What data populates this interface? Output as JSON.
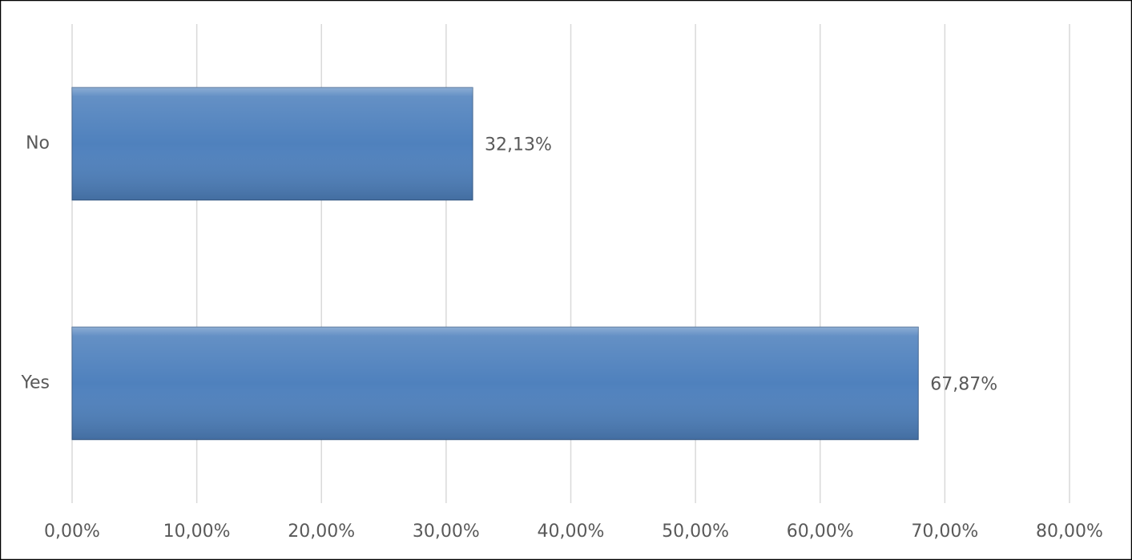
{
  "chart_data": {
    "type": "hbar",
    "categories": [
      "No",
      "Yes"
    ],
    "values": [
      32.13,
      67.87
    ],
    "value_labels": [
      "32,13%",
      "67,87%"
    ],
    "color": "#4f81bd",
    "xlim": [
      0,
      80
    ],
    "xticks": [
      {
        "value": 0,
        "label": "0,00%"
      },
      {
        "value": 10,
        "label": "10,00%"
      },
      {
        "value": 20,
        "label": "20,00%"
      },
      {
        "value": 30,
        "label": "30,00%"
      },
      {
        "value": 40,
        "label": "40,00%"
      },
      {
        "value": 50,
        "label": "50,00%"
      },
      {
        "value": 60,
        "label": "60,00%"
      },
      {
        "value": 70,
        "label": "70,00%"
      },
      {
        "value": 80,
        "label": "80,00%"
      }
    ],
    "grid": true
  }
}
